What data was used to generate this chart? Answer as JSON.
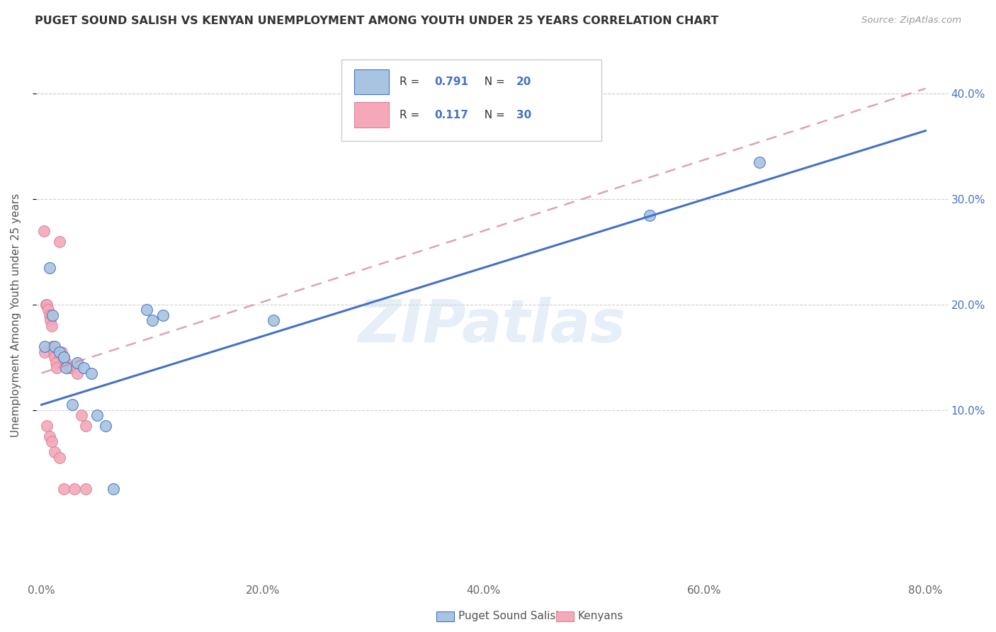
{
  "title": "PUGET SOUND SALISH VS KENYAN UNEMPLOYMENT AMONG YOUTH UNDER 25 YEARS CORRELATION CHART",
  "source": "Source: ZipAtlas.com",
  "ylabel": "Unemployment Among Youth under 25 years",
  "watermark": "ZIPatlas",
  "legend_label1": "Puget Sound Salish",
  "legend_label2": "Kenyans",
  "r1": "0.791",
  "n1": "20",
  "r2": "0.117",
  "n2": "30",
  "xlim": [
    -0.005,
    0.82
  ],
  "ylim": [
    -0.06,
    0.44
  ],
  "xticks": [
    0.0,
    0.2,
    0.4,
    0.6,
    0.8
  ],
  "yticks": [
    0.1,
    0.2,
    0.3,
    0.4
  ],
  "color_blue": "#a8c4e0",
  "color_pink": "#f4a8b8",
  "color_blue_line": "#4472c4",
  "color_pink_line": "#d4849a",
  "blue_line_x": [
    0.0,
    0.8
  ],
  "blue_line_y": [
    0.105,
    0.365
  ],
  "pink_line_x": [
    0.0,
    0.8
  ],
  "pink_line_y": [
    0.135,
    0.405
  ],
  "blue_points_x": [
    0.003,
    0.007,
    0.01,
    0.012,
    0.016,
    0.02,
    0.022,
    0.028,
    0.032,
    0.038,
    0.045,
    0.05,
    0.058,
    0.065,
    0.095,
    0.1,
    0.11,
    0.21,
    0.55,
    0.65
  ],
  "blue_points_y": [
    0.16,
    0.235,
    0.19,
    0.16,
    0.155,
    0.15,
    0.14,
    0.105,
    0.145,
    0.14,
    0.135,
    0.095,
    0.085,
    0.025,
    0.195,
    0.185,
    0.19,
    0.185,
    0.285,
    0.335
  ],
  "pink_points_x": [
    0.002,
    0.003,
    0.004,
    0.005,
    0.006,
    0.007,
    0.008,
    0.009,
    0.01,
    0.011,
    0.012,
    0.013,
    0.014,
    0.016,
    0.018,
    0.02,
    0.022,
    0.025,
    0.028,
    0.032,
    0.036,
    0.04,
    0.005,
    0.007,
    0.009,
    0.012,
    0.016,
    0.02,
    0.03,
    0.04
  ],
  "pink_points_y": [
    0.27,
    0.155,
    0.2,
    0.2,
    0.195,
    0.19,
    0.185,
    0.18,
    0.16,
    0.155,
    0.15,
    0.145,
    0.14,
    0.26,
    0.155,
    0.15,
    0.145,
    0.14,
    0.14,
    0.135,
    0.095,
    0.085,
    0.085,
    0.075,
    0.07,
    0.06,
    0.055,
    0.025,
    0.025,
    0.025
  ]
}
